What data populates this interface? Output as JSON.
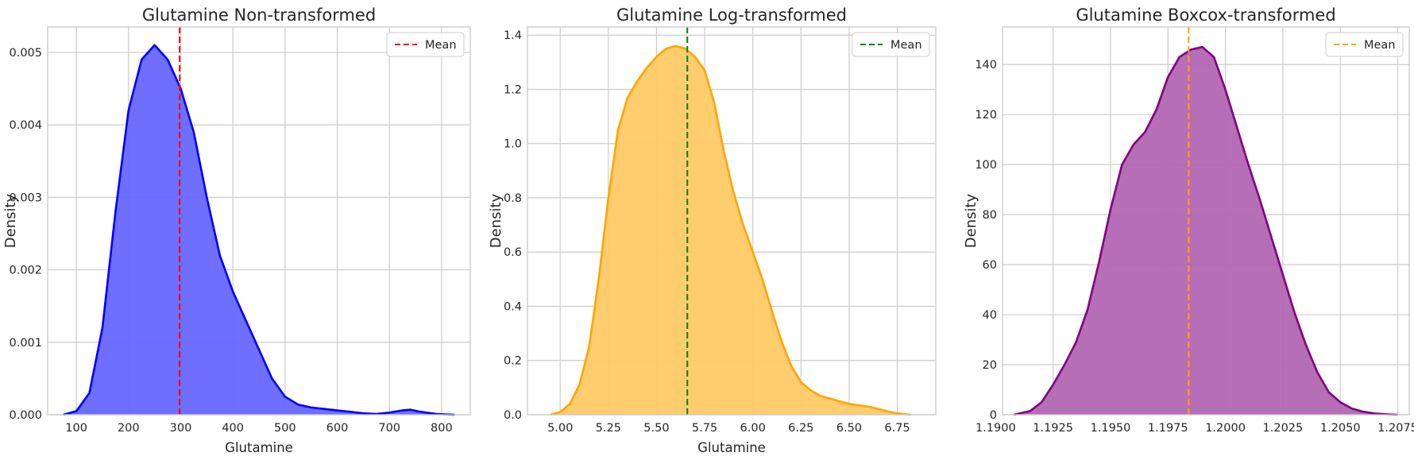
{
  "chart_data": [
    {
      "type": "area",
      "title": "Glutamine Non-transformed",
      "xlabel": "Glutamine",
      "ylabel": "Density",
      "xlim": [
        45,
        855
      ],
      "ylim": [
        0,
        0.00535
      ],
      "xticks": [
        100,
        200,
        300,
        400,
        500,
        600,
        700,
        800
      ],
      "xtick_labels": [
        "100",
        "200",
        "300",
        "400",
        "500",
        "600",
        "700",
        "800"
      ],
      "yticks": [
        0,
        0.001,
        0.002,
        0.003,
        0.004,
        0.005
      ],
      "ytick_labels": [
        "0.000",
        "0.001",
        "0.002",
        "0.003",
        "0.004",
        "0.005"
      ],
      "grid": true,
      "legend": {
        "position": "top-right",
        "entries": [
          "Mean"
        ]
      },
      "series": [
        {
          "name": "Mean",
          "kind": "vline",
          "x": 298,
          "color": "#ff0000",
          "style": "dashed"
        },
        {
          "kind": "kde",
          "color": "#0000ff",
          "fill": "#6666ff",
          "x": [
            75,
            100,
            125,
            150,
            175,
            200,
            225,
            250,
            275,
            300,
            325,
            350,
            375,
            400,
            425,
            450,
            475,
            500,
            525,
            550,
            575,
            600,
            625,
            650,
            675,
            700,
            725,
            740,
            760,
            790,
            825
          ],
          "y": [
            0.0,
            5e-05,
            0.0003,
            0.0012,
            0.0028,
            0.0042,
            0.0049,
            0.0051,
            0.0049,
            0.0045,
            0.0039,
            0.003,
            0.0022,
            0.0017,
            0.0013,
            0.0009,
            0.0005,
            0.00025,
            0.00014,
            0.0001,
            8e-05,
            6e-05,
            4e-05,
            2e-05,
            1e-05,
            3e-05,
            6e-05,
            7e-05,
            4e-05,
            1e-05,
            0.0
          ]
        }
      ]
    },
    {
      "type": "area",
      "title": "Glutamine Log-transformed",
      "xlabel": "Glutamine",
      "ylabel": "Density",
      "xlim": [
        4.83,
        6.95
      ],
      "ylim": [
        0,
        1.43
      ],
      "xticks": [
        5.0,
        5.25,
        5.5,
        5.75,
        6.0,
        6.25,
        6.5,
        6.75
      ],
      "xtick_labels": [
        "5.00",
        "5.25",
        "5.50",
        "5.75",
        "6.00",
        "6.25",
        "6.50",
        "6.75"
      ],
      "yticks": [
        0,
        0.2,
        0.4,
        0.6,
        0.8,
        1.0,
        1.2,
        1.4
      ],
      "ytick_labels": [
        "0.0",
        "0.2",
        "0.4",
        "0.6",
        "0.8",
        "1.0",
        "1.2",
        "1.4"
      ],
      "grid": true,
      "legend": {
        "position": "top-right",
        "entries": [
          "Mean"
        ]
      },
      "series": [
        {
          "name": "Mean",
          "kind": "vline",
          "x": 5.66,
          "color": "#008000",
          "style": "dashed"
        },
        {
          "kind": "kde",
          "color": "#ffa500",
          "fill": "#ffc966",
          "x": [
            4.95,
            5.0,
            5.05,
            5.1,
            5.15,
            5.2,
            5.25,
            5.3,
            5.35,
            5.4,
            5.45,
            5.5,
            5.55,
            5.6,
            5.65,
            5.7,
            5.75,
            5.8,
            5.85,
            5.9,
            5.95,
            6.0,
            6.05,
            6.1,
            6.15,
            6.2,
            6.25,
            6.3,
            6.35,
            6.4,
            6.45,
            6.5,
            6.55,
            6.6,
            6.65,
            6.7,
            6.75,
            6.82
          ],
          "y": [
            0.0,
            0.01,
            0.04,
            0.11,
            0.25,
            0.5,
            0.8,
            1.05,
            1.17,
            1.23,
            1.28,
            1.32,
            1.35,
            1.36,
            1.35,
            1.32,
            1.27,
            1.15,
            0.97,
            0.82,
            0.7,
            0.6,
            0.5,
            0.38,
            0.27,
            0.18,
            0.12,
            0.09,
            0.07,
            0.06,
            0.05,
            0.04,
            0.035,
            0.03,
            0.022,
            0.012,
            0.005,
            0.0
          ]
        }
      ]
    },
    {
      "type": "area",
      "title": "Glutamine Boxcox-transformed",
      "xlabel": "",
      "ylabel": "Density",
      "xlim": [
        1.1903,
        1.208
      ],
      "ylim": [
        0,
        155
      ],
      "xticks": [
        1.19,
        1.1925,
        1.195,
        1.1975,
        1.2,
        1.2025,
        1.205,
        1.2075
      ],
      "xtick_labels": [
        "1.1900",
        "1.1925",
        "1.1950",
        "1.1975",
        "1.2000",
        "1.2025",
        "1.2050",
        "1.2075"
      ],
      "yticks": [
        0,
        20,
        40,
        60,
        80,
        100,
        120,
        140
      ],
      "ytick_labels": [
        "0",
        "20",
        "40",
        "60",
        "80",
        "100",
        "120",
        "140"
      ],
      "grid": true,
      "legend": {
        "position": "top-right",
        "entries": [
          "Mean"
        ]
      },
      "series": [
        {
          "name": "Mean",
          "kind": "vline",
          "x": 1.1984,
          "color": "#ffa500",
          "style": "dashed"
        },
        {
          "kind": "kde",
          "color": "#800080",
          "fill": "#b266b2",
          "x": [
            1.1908,
            1.1915,
            1.192,
            1.1925,
            1.193,
            1.1935,
            1.194,
            1.1945,
            1.195,
            1.1955,
            1.196,
            1.1965,
            1.197,
            1.1975,
            1.198,
            1.1985,
            1.199,
            1.1995,
            1.2,
            1.2005,
            1.201,
            1.2015,
            1.202,
            1.2025,
            1.203,
            1.2035,
            1.204,
            1.2045,
            1.205,
            1.2055,
            1.206,
            1.2065,
            1.207,
            1.2075
          ],
          "y": [
            0.0,
            1.5,
            5,
            12,
            20,
            29,
            42,
            61,
            82,
            100,
            108,
            113,
            122,
            135,
            143,
            146,
            147,
            143,
            130,
            115,
            100,
            86,
            71,
            56,
            41,
            28,
            17,
            9,
            5,
            2.5,
            1.2,
            0.5,
            0.2,
            0.0
          ]
        }
      ]
    }
  ]
}
